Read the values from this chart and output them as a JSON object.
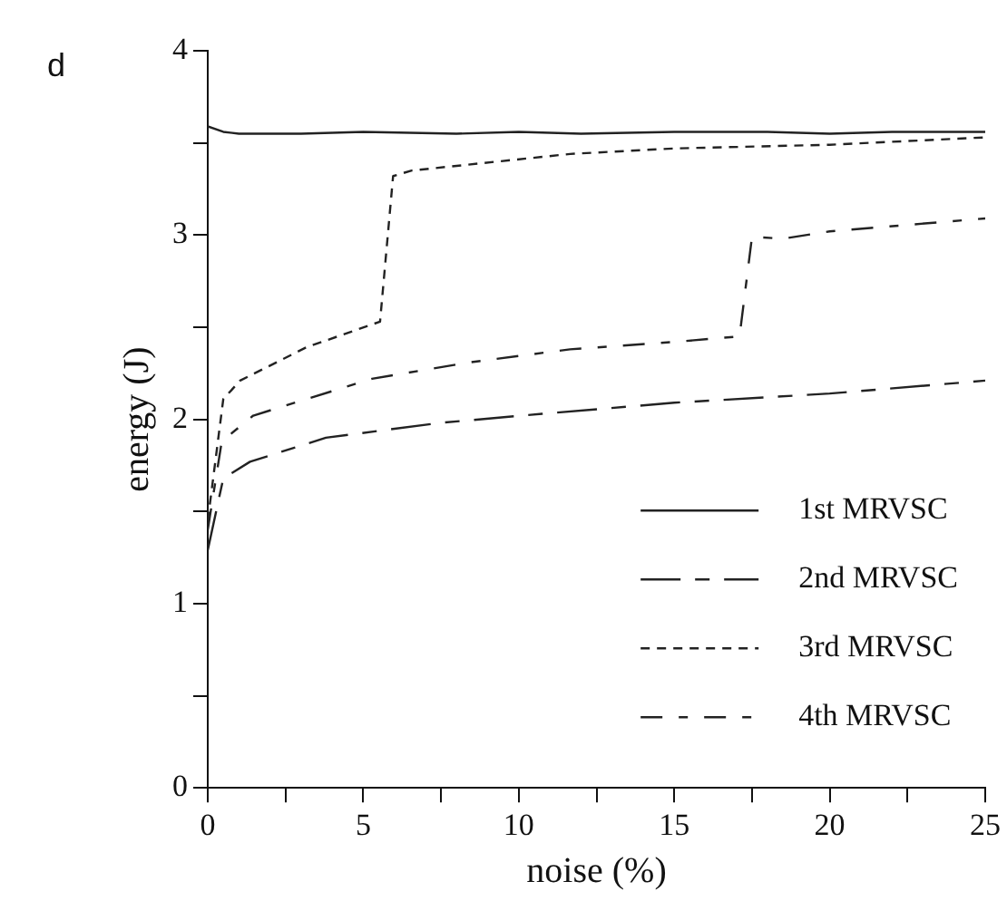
{
  "chart_data": {
    "type": "line",
    "xlabel": "noise (%)",
    "ylabel": "energy (J)",
    "annotations": [
      "d"
    ],
    "xlim": [
      0,
      25
    ],
    "xticks": [
      0,
      {
        "value": 2.5,
        "label": null
      },
      5,
      {
        "value": 7.5,
        "label": null
      },
      10,
      {
        "value": 12.5,
        "label": null
      },
      15,
      {
        "value": 17.5,
        "label": null
      },
      20,
      {
        "value": 22.5,
        "label": null
      },
      25
    ],
    "ylim": [
      0,
      4
    ],
    "yticks": [
      0,
      {
        "value": 0.5,
        "label": null
      },
      1,
      {
        "value": 1.5,
        "label": null
      },
      2,
      {
        "value": 2.5,
        "label": null
      },
      3,
      {
        "value": 3.5,
        "label": null
      },
      4
    ],
    "grid": false,
    "legend": "bottom right",
    "marker": "none",
    "series": [
      {
        "name": "1st MRVSC",
        "color": "#222222",
        "line_style": "solid",
        "x": [
          0,
          0.5,
          1,
          3,
          5,
          8,
          10,
          12,
          15,
          18,
          20,
          22,
          25
        ],
        "values": [
          3.59,
          3.56,
          3.55,
          3.55,
          3.56,
          3.55,
          3.56,
          3.55,
          3.56,
          3.56,
          3.55,
          3.56,
          3.56
        ]
      },
      {
        "name": "2nd MRVSC",
        "color": "#222222",
        "line_style": "dashed",
        "x": [
          0,
          0.5,
          1.36,
          3.8,
          7.43,
          10.75,
          15,
          20,
          25
        ],
        "values": [
          1.29,
          1.68,
          1.77,
          1.9,
          1.98,
          2.03,
          2.09,
          2.14,
          2.21
        ]
      },
      {
        "name": "3rd MRVSC",
        "color": "#222222",
        "line_style": "dotted",
        "x": [
          0,
          0.5,
          1.04,
          3.16,
          5.54,
          5.96,
          6.56,
          11.65,
          15,
          20,
          25
        ],
        "values": [
          1.45,
          2.11,
          2.21,
          2.39,
          2.53,
          3.32,
          3.35,
          3.44,
          3.47,
          3.49,
          3.53
        ]
      },
      {
        "name": "4th MRVSC",
        "color": "#222222",
        "line_style": "dashdot",
        "x": [
          0,
          0.45,
          1.46,
          5.28,
          8.46,
          11.65,
          15,
          17.1,
          17.5,
          18.5,
          20,
          25
        ],
        "values": [
          1.4,
          1.88,
          2.02,
          2.22,
          2.31,
          2.38,
          2.42,
          2.45,
          2.99,
          2.98,
          3.02,
          3.09
        ]
      }
    ]
  }
}
